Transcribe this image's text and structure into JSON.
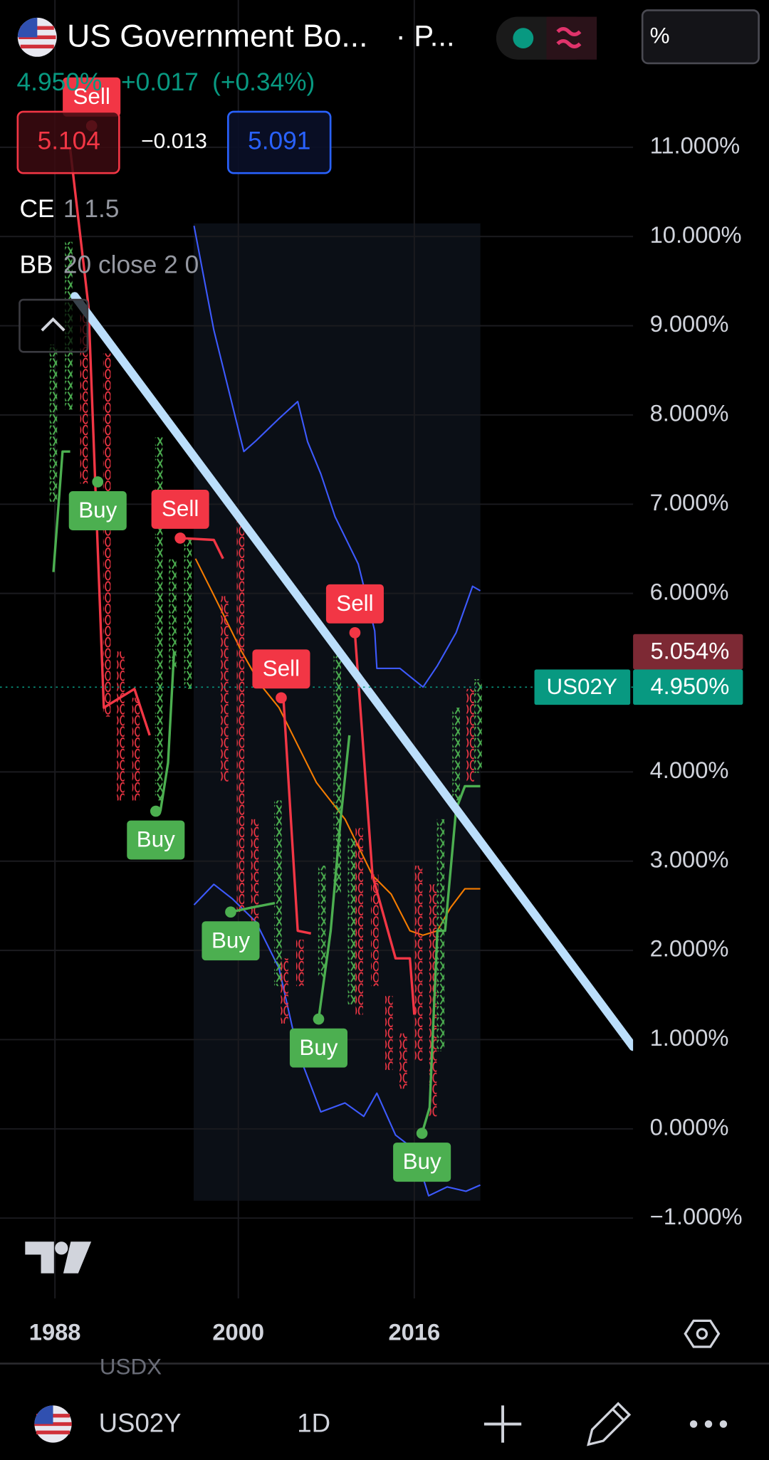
{
  "header": {
    "symbol": "US Government Bo...",
    "suffix": "· P...",
    "price": "4.950%",
    "change": "+0.017",
    "change_pct": "(+0.34%)",
    "bid": "5.104",
    "spread": "−0.013",
    "ask": "5.091",
    "unit_field": "%"
  },
  "indicators": [
    {
      "name": "CE",
      "params": "1 1.5"
    },
    {
      "name": "BB",
      "params": "20 close 2 0"
    }
  ],
  "chart_data": {
    "type": "point_and_figure",
    "xlim": [
      1984.4,
      2035.9
    ],
    "xticks": [
      1988,
      2000,
      2016
    ],
    "ylim": [
      -1.9,
      12.65
    ],
    "yticks": [
      {
        "value": 11,
        "label": "11.000%"
      },
      {
        "value": 10,
        "label": "10.000%"
      },
      {
        "value": 9,
        "label": "9.000%"
      },
      {
        "value": 8,
        "label": "8.000%"
      },
      {
        "value": 7,
        "label": "7.000%"
      },
      {
        "value": 6,
        "label": "6.000%"
      },
      {
        "value": 4,
        "label": "4.000%"
      },
      {
        "value": 3,
        "label": "3.000%"
      },
      {
        "value": 2,
        "label": "2.000%"
      },
      {
        "value": 1,
        "label": "1.000%"
      },
      {
        "value": 0,
        "label": "0.000%"
      },
      {
        "value": -1,
        "label": "−1.000%"
      }
    ],
    "grid": true,
    "x_color": "#4caf50",
    "o_color": "#f23645",
    "columns": [
      {
        "x": 1987.9,
        "high": 8.79,
        "low": 7.02,
        "kind": "x"
      },
      {
        "x": 1988.9,
        "high": 9.94,
        "low": 8.06,
        "kind": "x"
      },
      {
        "x": 1989.9,
        "high": 9.21,
        "low": 7.23,
        "kind": "o"
      },
      {
        "x": 1991.4,
        "high": 8.69,
        "low": 4.62,
        "kind": "o"
      },
      {
        "x": 1992.3,
        "high": 5.35,
        "low": 3.68,
        "kind": "o"
      },
      {
        "x": 1993.3,
        "high": 4.83,
        "low": 3.68,
        "kind": "o"
      },
      {
        "x": 1994.8,
        "high": 7.75,
        "low": 3.68,
        "kind": "x"
      },
      {
        "x": 1995.7,
        "high": 6.39,
        "low": 5.14,
        "kind": "x"
      },
      {
        "x": 1996.7,
        "high": 6.6,
        "low": 4.93,
        "kind": "x"
      },
      {
        "x": 1999.1,
        "high": 5.97,
        "low": 3.89,
        "kind": "o"
      },
      {
        "x": 2000.2,
        "high": 6.81,
        "low": 2.43,
        "kind": "o"
      },
      {
        "x": 2001.5,
        "high": 3.47,
        "low": 2.33,
        "kind": "o"
      },
      {
        "x": 2003.6,
        "high": 3.68,
        "low": 1.6,
        "kind": "x"
      },
      {
        "x": 2004.2,
        "high": 1.91,
        "low": 1.18,
        "kind": "o"
      },
      {
        "x": 2005.6,
        "high": 2.12,
        "low": 1.6,
        "kind": "o"
      },
      {
        "x": 2007.6,
        "high": 2.95,
        "low": 1.7,
        "kind": "x"
      },
      {
        "x": 2009.0,
        "high": 5.35,
        "low": 2.64,
        "kind": "x"
      },
      {
        "x": 2010.3,
        "high": 3.26,
        "low": 1.39,
        "kind": "x"
      },
      {
        "x": 2011.0,
        "high": 3.37,
        "low": 1.28,
        "kind": "o"
      },
      {
        "x": 2012.4,
        "high": 2.85,
        "low": 1.6,
        "kind": "o"
      },
      {
        "x": 2013.7,
        "high": 1.49,
        "low": 0.66,
        "kind": "o"
      },
      {
        "x": 2015.0,
        "high": 1.07,
        "low": 0.45,
        "kind": "o"
      },
      {
        "x": 2016.4,
        "high": 2.95,
        "low": 0.76,
        "kind": "o"
      },
      {
        "x": 2017.7,
        "high": 2.74,
        "low": 0.14,
        "kind": "o"
      },
      {
        "x": 2018.4,
        "high": 3.47,
        "low": 0.87,
        "kind": "x"
      },
      {
        "x": 2019.8,
        "high": 4.72,
        "low": 3.68,
        "kind": "x"
      },
      {
        "x": 2021.1,
        "high": 4.93,
        "low": 3.89,
        "kind": "o"
      },
      {
        "x": 2021.8,
        "high": 5.04,
        "low": 3.99,
        "kind": "x"
      }
    ],
    "bollinger": [
      {
        "color": "#3d5afe",
        "x": [
          1997.1,
          1998.4,
          2000.5,
          2001.6,
          2003.7,
          2005.4,
          2006.3,
          2007.5,
          2008.8,
          2010.9,
          2012.4,
          2012.6,
          2014.7,
          2016.8,
          2018.1,
          2019.8,
          2021.3,
          2022.0
        ],
        "values": [
          10.12,
          8.95,
          7.59,
          7.71,
          7.96,
          8.15,
          7.7,
          7.34,
          6.86,
          6.33,
          5.58,
          5.16,
          5.16,
          4.95,
          5.19,
          5.56,
          6.08,
          6.03
        ]
      },
      {
        "color": "#f57c00",
        "x": [
          1997.2,
          1998.4,
          2000.3,
          2002.0,
          2003.7,
          2005.4,
          2007.1,
          2009.7,
          2012.2,
          2013.9,
          2015.6,
          2016.8,
          2018.1,
          2019.3,
          2020.6,
          2022.0
        ],
        "values": [
          6.39,
          5.98,
          5.35,
          4.98,
          4.72,
          4.3,
          3.88,
          3.47,
          2.84,
          2.63,
          2.22,
          2.17,
          2.22,
          2.48,
          2.69,
          2.69
        ]
      },
      {
        "color": "#3d5afe",
        "x": [
          1997.1,
          1998.4,
          1999.6,
          2001.6,
          2003.7,
          2005.4,
          2007.5,
          2009.7,
          2011.4,
          2012.6,
          2014.3,
          2016.0,
          2017.3,
          2019.0,
          2020.7,
          2022.0
        ],
        "values": [
          2.51,
          2.74,
          2.58,
          2.32,
          1.8,
          0.87,
          0.19,
          0.29,
          0.14,
          0.4,
          -0.07,
          -0.23,
          -0.75,
          -0.65,
          -0.7,
          -0.63
        ]
      }
    ],
    "chandelier": [
      {
        "color": "#f23645",
        "x": [
          1989.0,
          1990.2,
          1991.2,
          1993.2,
          1994.2
        ],
        "values": [
          10.98,
          9.21,
          4.72,
          4.93,
          4.41
        ]
      },
      {
        "color": "#f23645",
        "x": [
          1996.2,
          1998.4,
          1999.0
        ],
        "values": [
          6.62,
          6.6,
          6.39
        ]
      },
      {
        "color": "#f23645",
        "x": [
          2004.1,
          2005.4,
          2006.6
        ],
        "values": [
          4.83,
          2.22,
          2.19
        ]
      },
      {
        "color": "#f23645",
        "x": [
          2010.6,
          2012.2,
          2014.3,
          2015.6,
          2016.0
        ],
        "values": [
          5.56,
          2.84,
          1.91,
          1.91,
          1.28
        ]
      },
      {
        "color": "#4caf50",
        "x": [
          1987.9,
          1988.5,
          1989.0
        ],
        "values": [
          6.24,
          7.59,
          7.59
        ]
      },
      {
        "color": "#4caf50",
        "x": [
          1994.9,
          1995.4,
          1995.8
        ],
        "values": [
          3.56,
          4.1,
          5.35
        ]
      },
      {
        "color": "#4caf50",
        "x": [
          1999.5,
          2001.2,
          2003.3
        ],
        "values": [
          2.43,
          2.48,
          2.53
        ]
      },
      {
        "color": "#4caf50",
        "x": [
          2007.3,
          2008.4,
          2009.3,
          2010.1
        ],
        "values": [
          1.23,
          2.22,
          3.47,
          4.41
        ]
      },
      {
        "color": "#4caf50",
        "x": [
          2016.7,
          2017.4,
          2018.1,
          2018.8,
          2019.8,
          2020.6,
          2022.0
        ],
        "values": [
          -0.05,
          0.24,
          2.22,
          2.22,
          3.58,
          3.84,
          3.84
        ]
      }
    ],
    "trendline": {
      "color": "#bbdefb",
      "x": [
        1989.3,
        2035.9
      ],
      "values": [
        9.33,
        0.92
      ]
    },
    "signals": [
      {
        "label": "Sell",
        "x": 1990.4,
        "value": 11.24,
        "position": "above",
        "color": "#f23645"
      },
      {
        "label": "Buy",
        "x": 1990.8,
        "value": 7.25,
        "position": "below",
        "color": "#4caf50"
      },
      {
        "label": "Sell",
        "x": 1996.2,
        "value": 6.62,
        "position": "above",
        "color": "#f23645"
      },
      {
        "label": "Buy",
        "x": 1994.6,
        "value": 3.56,
        "position": "below",
        "color": "#4caf50"
      },
      {
        "label": "Buy",
        "x": 1999.5,
        "value": 2.43,
        "position": "below",
        "color": "#4caf50"
      },
      {
        "label": "Sell",
        "x": 2003.9,
        "value": 4.83,
        "position": "above",
        "color": "#f23645"
      },
      {
        "label": "Sell",
        "x": 2010.6,
        "value": 5.56,
        "position": "above",
        "color": "#f23645"
      },
      {
        "label": "Buy",
        "x": 2007.3,
        "value": 1.23,
        "position": "below",
        "color": "#4caf50"
      },
      {
        "label": "Buy",
        "x": 2016.7,
        "value": -0.05,
        "position": "below",
        "color": "#4caf50"
      }
    ],
    "last_price": {
      "value": 4.95,
      "label": "4.950%",
      "symbol": "US02Y",
      "color": "#089981"
    },
    "mark_price": {
      "value": 5.054,
      "label": "5.054%",
      "color": "#7d2934"
    }
  },
  "footer": {
    "overlay": "USDX",
    "symbol": "US02Y",
    "interval": "1D"
  }
}
